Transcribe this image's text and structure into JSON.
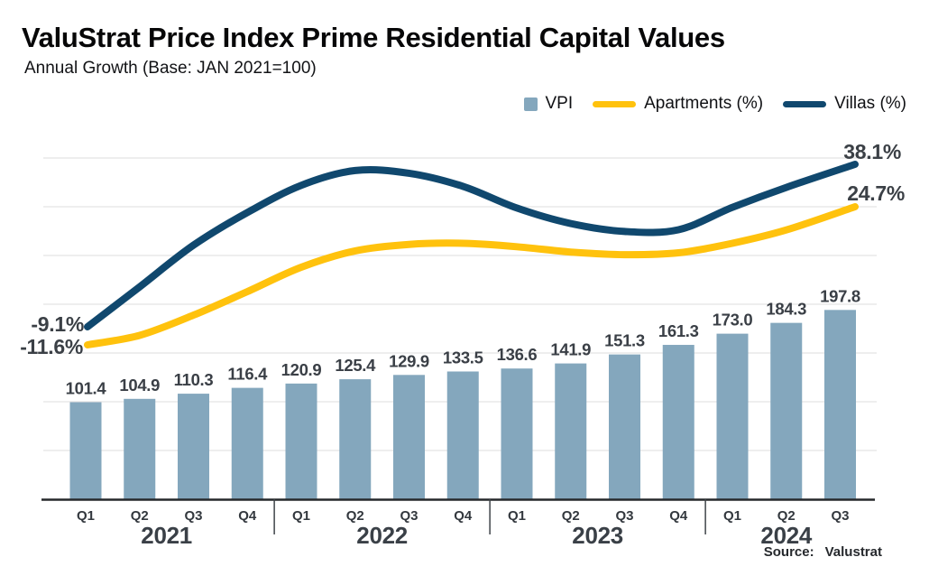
{
  "header": {
    "title": "ValuStrat Price Index Prime Residential Capital Values",
    "subtitle": "Annual Growth (Base: JAN 2021=100)"
  },
  "colors": {
    "vpi_bar": "#84a7bd",
    "apartments_line": "#ffc20d",
    "villas_line": "#10486e",
    "grid": "#e4e4e4",
    "axis": "#26282b",
    "separator": "#3f4449",
    "label_text": "#3a3f46"
  },
  "chart_data": {
    "type": "combo-bar-line",
    "title": "ValuStrat Price Index Prime Residential Capital Values",
    "subtitle": "Annual Growth (Base: JAN 2021=100)",
    "legend": [
      {
        "label": "VPI",
        "swatch": "square",
        "color": "#84a7bd"
      },
      {
        "label": "Apartments (%)",
        "swatch": "line",
        "color": "#ffc20d"
      },
      {
        "label": "Villas (%)",
        "swatch": "line",
        "color": "#10486e"
      }
    ],
    "x_axis": {
      "groups": [
        {
          "year": "2021",
          "quarters": [
            "Q1",
            "Q2",
            "Q3",
            "Q4"
          ]
        },
        {
          "year": "2022",
          "quarters": [
            "Q1",
            "Q2",
            "Q3",
            "Q4"
          ]
        },
        {
          "year": "2023",
          "quarters": [
            "Q1",
            "Q2",
            "Q3",
            "Q4"
          ]
        },
        {
          "year": "2024",
          "quarters": [
            "Q1",
            "Q2",
            "Q3"
          ]
        }
      ]
    },
    "bars": {
      "name": "VPI",
      "color": "#84a7bd",
      "labels": [
        "101.4",
        "104.9",
        "110.3",
        "116.4",
        "120.9",
        "125.4",
        "129.9",
        "133.5",
        "136.6",
        "141.9",
        "151.3",
        "161.3",
        "173.0",
        "184.3",
        "197.8"
      ],
      "values": [
        101.4,
        104.9,
        110.3,
        116.4,
        120.9,
        125.4,
        129.9,
        133.5,
        136.6,
        141.9,
        151.3,
        161.3,
        173.0,
        184.3,
        197.8
      ]
    },
    "lines": [
      {
        "name": "Apartments (%)",
        "color": "#ffc20d",
        "start_label": "-11.6%",
        "end_label": "24.7%",
        "start_value": -11.6,
        "end_value": 24.7,
        "values_est_pct": [
          -11.6,
          -9.1,
          -3.8,
          2.4,
          8.8,
          13.1,
          14.8,
          15.1,
          14.2,
          12.8,
          12.1,
          12.6,
          15.1,
          18.6,
          24.7
        ]
      },
      {
        "name": "Villas (%)",
        "color": "#10486e",
        "start_label": "-9.1%",
        "end_label": "38.1%",
        "start_value": -9.1,
        "end_value": 38.1,
        "values_est_pct": [
          -9.1,
          2.5,
          14.6,
          24.1,
          32.0,
          36.3,
          35.5,
          31.7,
          25.4,
          20.9,
          18.6,
          19.1,
          25.6,
          31.4,
          38.1
        ]
      }
    ],
    "grid": true,
    "legend_position": "top-right",
    "source_label": "Source:",
    "source_value": "Valustrat"
  }
}
